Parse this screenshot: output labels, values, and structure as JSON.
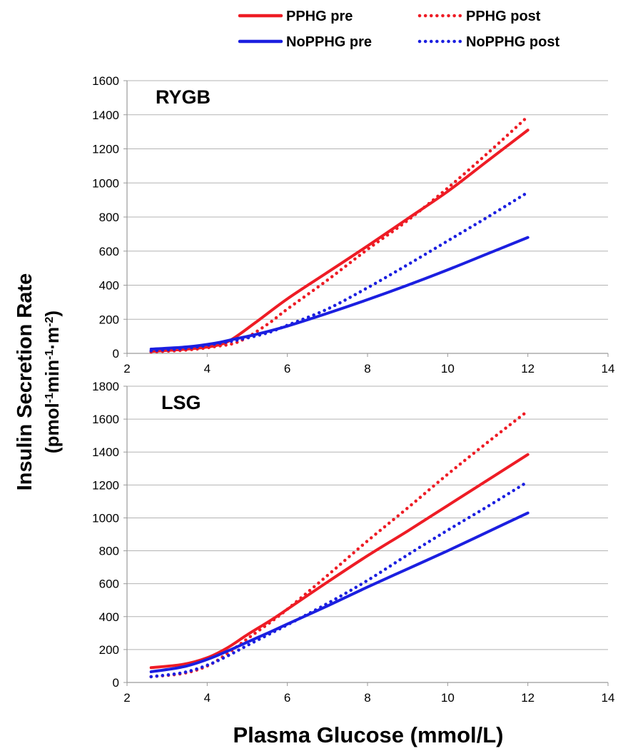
{
  "legend": [
    {
      "label": "PPHG pre",
      "color": "#ee1c25",
      "style": "solid"
    },
    {
      "label": "PPHG post",
      "color": "#ee1c25",
      "style": "dotted"
    },
    {
      "label": "NoPPHG pre",
      "color": "#1b1fe0",
      "style": "solid"
    },
    {
      "label": "NoPPHG post",
      "color": "#1b1fe0",
      "style": "dotted"
    }
  ],
  "ylabel_line1": "Insulin Secretion Rate",
  "ylabel_line2_parts": [
    "(pmol",
    "-1",
    "min",
    "-1",
    "·m",
    "-2",
    ")"
  ],
  "xlabel": "Plasma Glucose (mmol/L)",
  "chart_data": [
    {
      "type": "line",
      "title": "RYGB",
      "xlim": [
        2,
        14
      ],
      "ylim": [
        0,
        1600
      ],
      "xticks": [
        2,
        4,
        6,
        8,
        10,
        12,
        14
      ],
      "yticks": [
        0,
        200,
        400,
        600,
        800,
        1000,
        1200,
        1400,
        1600
      ],
      "grid": true,
      "series": [
        {
          "name": "PPHG pre",
          "color": "#ee1c25",
          "style": "solid",
          "x": [
            2.6,
            3.5,
            4.2,
            4.6,
            5.2,
            6,
            7,
            8,
            9,
            10,
            11,
            12
          ],
          "y": [
            12,
            25,
            45,
            80,
            180,
            320,
            475,
            630,
            790,
            950,
            1130,
            1310
          ]
        },
        {
          "name": "PPHG post",
          "color": "#ee1c25",
          "style": "dotted",
          "x": [
            2.6,
            3.5,
            4.2,
            4.8,
            5.5,
            6,
            7,
            8,
            9,
            10,
            11,
            12
          ],
          "y": [
            8,
            20,
            40,
            70,
            170,
            260,
            430,
            610,
            780,
            970,
            1175,
            1390
          ]
        },
        {
          "name": "NoPPHG pre",
          "color": "#1b1fe0",
          "style": "solid",
          "x": [
            2.6,
            3.5,
            4.2,
            4.6,
            5.2,
            6,
            7,
            8,
            9,
            10,
            11,
            12
          ],
          "y": [
            25,
            38,
            60,
            80,
            110,
            160,
            235,
            315,
            400,
            490,
            585,
            680
          ]
        },
        {
          "name": "NoPPHG post",
          "color": "#1b1fe0",
          "style": "dotted",
          "x": [
            2.6,
            3.5,
            4.2,
            4.8,
            5.5,
            6,
            7,
            8,
            9,
            10,
            11,
            12
          ],
          "y": [
            15,
            30,
            55,
            80,
            120,
            165,
            260,
            385,
            520,
            660,
            800,
            945
          ]
        }
      ]
    },
    {
      "type": "line",
      "title": "LSG",
      "xlim": [
        2,
        14
      ],
      "ylim": [
        0,
        1800
      ],
      "xticks": [
        2,
        4,
        6,
        8,
        10,
        12,
        14
      ],
      "yticks": [
        0,
        200,
        400,
        600,
        800,
        1000,
        1200,
        1400,
        1600,
        1800
      ],
      "grid": true,
      "series": [
        {
          "name": "PPHG pre",
          "color": "#ee1c25",
          "style": "solid",
          "x": [
            2.6,
            3.4,
            4,
            4.5,
            5,
            5.6,
            6,
            7,
            8,
            9,
            10,
            11,
            12
          ],
          "y": [
            90,
            110,
            150,
            210,
            290,
            380,
            445,
            610,
            770,
            920,
            1075,
            1230,
            1385
          ]
        },
        {
          "name": "PPHG post",
          "color": "#ee1c25",
          "style": "dotted",
          "x": [
            2.6,
            3.4,
            4,
            4.5,
            5,
            5.6,
            6,
            7,
            8,
            9,
            10,
            11,
            12
          ],
          "y": [
            35,
            55,
            100,
            175,
            265,
            370,
            445,
            650,
            860,
            1060,
            1265,
            1460,
            1650
          ]
        },
        {
          "name": "NoPPHG pre",
          "color": "#1b1fe0",
          "style": "solid",
          "x": [
            2.6,
            3.4,
            4,
            4.5,
            5,
            5.6,
            6,
            7,
            8,
            9,
            10,
            11,
            12
          ],
          "y": [
            65,
            95,
            140,
            190,
            245,
            310,
            355,
            465,
            580,
            690,
            800,
            915,
            1030
          ]
        },
        {
          "name": "NoPPHG post",
          "color": "#1b1fe0",
          "style": "dotted",
          "x": [
            2.6,
            3.4,
            4,
            4.5,
            5,
            5.6,
            6,
            7,
            8,
            9,
            10,
            11,
            12
          ],
          "y": [
            35,
            60,
            105,
            160,
            225,
            300,
            350,
            480,
            620,
            775,
            925,
            1070,
            1220
          ]
        }
      ]
    }
  ]
}
